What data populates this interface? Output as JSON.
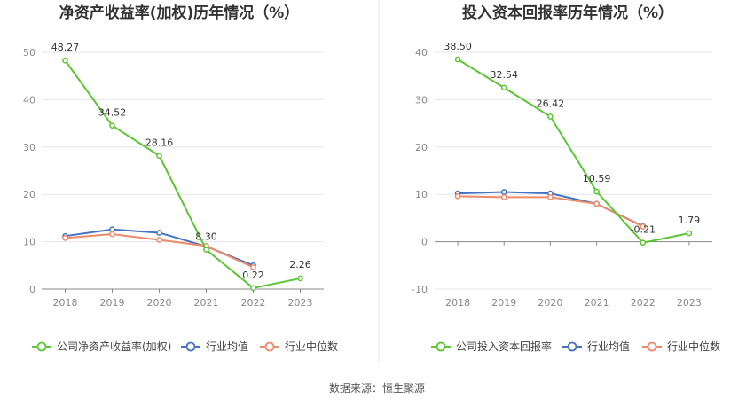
{
  "colors": {
    "company": "#5cc534",
    "average": "#4472c4",
    "median": "#ed8a6a",
    "grid": "#e4e6ee",
    "axis": "#888888",
    "divider": "#e6e6e6"
  },
  "source_text": "数据来源：恒生聚源",
  "chart_data": [
    {
      "type": "line",
      "title": "净资产收益率(加权)历年情况（%）",
      "categories": [
        "2018",
        "2019",
        "2020",
        "2021",
        "2022",
        "2023"
      ],
      "ylim": [
        0,
        50
      ],
      "yticks": [
        0,
        10,
        20,
        30,
        40,
        50
      ],
      "grid": true,
      "legend_position": "bottom",
      "series": [
        {
          "name": "公司净资产收益率(加权)",
          "key": "company",
          "values": [
            48.27,
            34.52,
            28.16,
            8.3,
            0.22,
            2.26
          ],
          "labels": [
            "48.27",
            "34.52",
            "28.16",
            "8.30",
            "0.22",
            "2.26"
          ]
        },
        {
          "name": "行业均值",
          "key": "average",
          "values": [
            11.2,
            12.6,
            11.9,
            9.0,
            5.0,
            null
          ]
        },
        {
          "name": "行业中位数",
          "key": "median",
          "values": [
            10.8,
            11.6,
            10.4,
            9.1,
            4.6,
            null
          ]
        }
      ]
    },
    {
      "type": "line",
      "title": "投入资本回报率历年情况（%）",
      "categories": [
        "2018",
        "2019",
        "2020",
        "2021",
        "2022",
        "2023"
      ],
      "ylim": [
        -10,
        40
      ],
      "yticks": [
        -10,
        0,
        10,
        20,
        30,
        40
      ],
      "grid": true,
      "legend_position": "bottom",
      "series": [
        {
          "name": "公司投入资本回报率",
          "key": "company",
          "values": [
            38.5,
            32.54,
            26.42,
            10.59,
            -0.21,
            1.79
          ],
          "labels": [
            "38.50",
            "32.54",
            "26.42",
            "10.59",
            "-0.21",
            "1.79"
          ]
        },
        {
          "name": "行业均值",
          "key": "average",
          "values": [
            10.2,
            10.5,
            10.2,
            8.0,
            3.3,
            null
          ]
        },
        {
          "name": "行业中位数",
          "key": "median",
          "values": [
            9.6,
            9.4,
            9.4,
            8.0,
            3.2,
            null
          ]
        }
      ]
    }
  ]
}
